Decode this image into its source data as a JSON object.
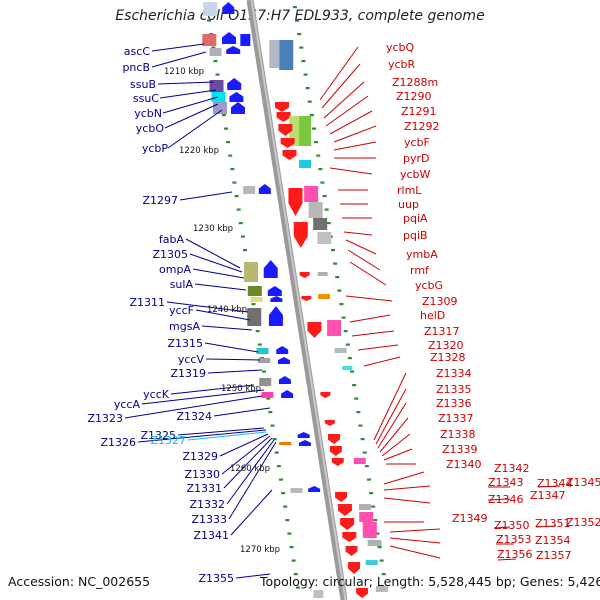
{
  "header": {
    "title": "Escherichia coli O157:H7 EDL933, complete genome"
  },
  "footer": {
    "accession": "Accession: NC_002655",
    "topology": "Topology: circular; Length: 5,528,445 bp; Genes: 5,426"
  },
  "colors": {
    "forward_label": "#00008b",
    "reverse_label": "#cc0000",
    "rna_label": "#00bfff",
    "backbone": "#8a8a8a",
    "tick": "#2e8b2e"
  },
  "scale_ticks": [
    "1210 kbp",
    "1220 kbp",
    "1230 kbp",
    "1240 kbp",
    "1250 kbp",
    "1260 kbp",
    "1270 kbp"
  ],
  "genes_left": [
    {
      "name": "ascC"
    },
    {
      "name": "pncB"
    },
    {
      "name": "ssuB"
    },
    {
      "name": "ssuC"
    },
    {
      "name": "ycbN"
    },
    {
      "name": "ycbO"
    },
    {
      "name": "ycbP"
    },
    {
      "name": "Z1297"
    },
    {
      "name": "fabA"
    },
    {
      "name": "Z1305"
    },
    {
      "name": "ompA"
    },
    {
      "name": "sulA"
    },
    {
      "name": "Z1311"
    },
    {
      "name": "yccF"
    },
    {
      "name": "mgsA"
    },
    {
      "name": "Z1315"
    },
    {
      "name": "yccV"
    },
    {
      "name": "Z1319"
    },
    {
      "name": "yccK"
    },
    {
      "name": "yccA"
    },
    {
      "name": "Z1323"
    },
    {
      "name": "Z1324"
    },
    {
      "name": "Z1325"
    },
    {
      "name": "Z1326"
    },
    {
      "name": "Z1327"
    },
    {
      "name": "Z1329"
    },
    {
      "name": "Z1330"
    },
    {
      "name": "Z1331"
    },
    {
      "name": "Z1332"
    },
    {
      "name": "Z1333"
    },
    {
      "name": "Z1341"
    },
    {
      "name": "Z1355"
    }
  ],
  "genes_right": [
    {
      "name": "ycbQ"
    },
    {
      "name": "ycbR"
    },
    {
      "name": "Z1288m"
    },
    {
      "name": "Z1290"
    },
    {
      "name": "Z1291"
    },
    {
      "name": "Z1292"
    },
    {
      "name": "ycbF"
    },
    {
      "name": "pyrD"
    },
    {
      "name": "ycbW"
    },
    {
      "name": "rlmL"
    },
    {
      "name": "uup"
    },
    {
      "name": "pqiA"
    },
    {
      "name": "pqiB"
    },
    {
      "name": "ymbA"
    },
    {
      "name": "rmf"
    },
    {
      "name": "ycbG"
    },
    {
      "name": "Z1309"
    },
    {
      "name": "helD"
    },
    {
      "name": "Z1317"
    },
    {
      "name": "Z1320"
    },
    {
      "name": "Z1328"
    },
    {
      "name": "Z1334"
    },
    {
      "name": "Z1335"
    },
    {
      "name": "Z1336"
    },
    {
      "name": "Z1337"
    },
    {
      "name": "Z1338"
    },
    {
      "name": "Z1339"
    },
    {
      "name": "Z1340"
    },
    {
      "name": "Z1342"
    },
    {
      "name": "Z1343"
    },
    {
      "name": "Z1344"
    },
    {
      "name": "Z1345"
    },
    {
      "name": "Z1346"
    },
    {
      "name": "Z1347"
    },
    {
      "name": "Z1349"
    },
    {
      "name": "Z1350"
    },
    {
      "name": "Z1351"
    },
    {
      "name": "Z1352"
    },
    {
      "name": "Z1353"
    },
    {
      "name": "Z1354"
    },
    {
      "name": "Z1356"
    },
    {
      "name": "Z1357"
    }
  ]
}
